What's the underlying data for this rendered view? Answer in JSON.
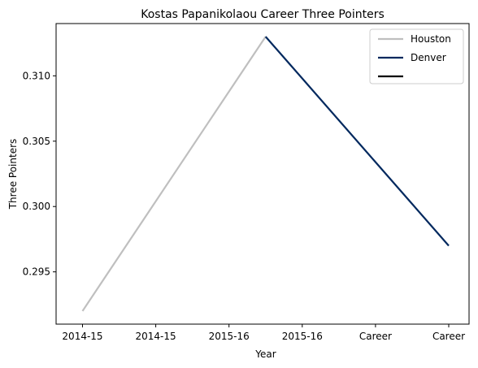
{
  "chart_data": {
    "type": "line",
    "title": "Kostas Papanikolaou Career Three Pointers",
    "xlabel": "Year",
    "ylabel": "Three Pointers",
    "x_tick_labels": [
      "2014-15",
      "2014-15",
      "2015-16",
      "2015-16",
      "Career",
      "Career"
    ],
    "ylim": [
      0.291,
      0.314
    ],
    "y_ticks": [
      0.295,
      0.3,
      0.305,
      0.31
    ],
    "y_tick_labels": [
      "0.295",
      "0.300",
      "0.305",
      "0.310"
    ],
    "grid": false,
    "legend_position": "top-right",
    "series": [
      {
        "name": "Houston",
        "color": "#bfbfbf",
        "points": [
          {
            "x": 0,
            "y": 0.292
          },
          {
            "x": 2.5,
            "y": 0.313
          }
        ]
      },
      {
        "name": "Denver",
        "color": "#00285e",
        "points": [
          {
            "x": 2.5,
            "y": 0.313
          },
          {
            "x": 5,
            "y": 0.297
          }
        ]
      },
      {
        "name": "",
        "color": "#000000",
        "points": []
      }
    ]
  }
}
